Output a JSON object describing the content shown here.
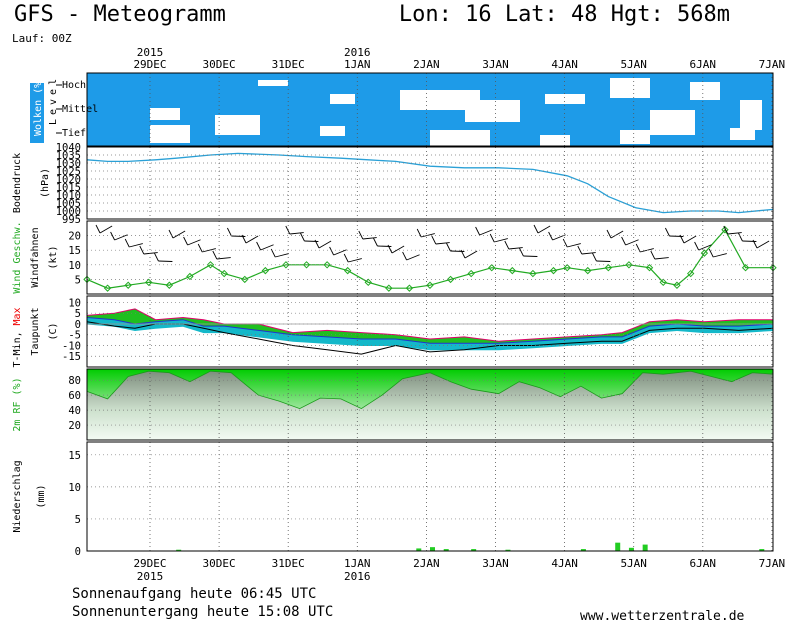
{
  "header": {
    "title": "GFS - Meteogramm",
    "location": "Lon: 16  Lat: 48  Hgt: 568m",
    "run": "Lauf: 00Z"
  },
  "footer": {
    "sunrise": "Sonnenaufgang heute 06:45 UTC",
    "sunset": "Sonnenuntergang heute 15:08 UTC",
    "site": "www.wetterzentrale.de"
  },
  "x_axis": {
    "dates": [
      "29DEC",
      "30DEC",
      "31DEC",
      "1JAN",
      "2JAN",
      "3JAN",
      "4JAN",
      "5JAN",
      "6JAN",
      "7JAN"
    ],
    "years": [
      {
        "label": "2015",
        "date": "29DEC"
      },
      {
        "label": "2016",
        "date": "1JAN"
      }
    ]
  },
  "colors": {
    "cloud": "#1e9be8",
    "pressure": "#2aa0d6",
    "wind": "#22aa22",
    "rf": "#1fcc1f",
    "precip": "#22cc22"
  },
  "chart_data": [
    {
      "type": "heatmap",
      "title": "Wolken (%)",
      "ylabel": "Level",
      "levels": [
        "Hoch",
        "Mittel",
        "Tief"
      ],
      "note": "cloud cover by level"
    },
    {
      "type": "line",
      "ylabel": "Bodendruck (hPa)",
      "yticks": [
        1040,
        1035,
        1030,
        1025,
        1020,
        1015,
        1010,
        1005,
        1000,
        995
      ],
      "ylim": [
        995,
        1040
      ],
      "x_days": [
        0,
        0.3,
        0.6,
        1.0,
        1.3,
        1.8,
        2.2,
        2.8,
        3.2,
        3.7,
        4.1,
        4.5,
        5.0,
        5.5,
        6.0,
        6.5,
        7.0,
        7.3,
        7.6,
        8.0,
        8.4,
        8.8,
        9.2,
        9.5,
        10.0
      ],
      "values": [
        1032,
        1031,
        1031,
        1032,
        1033,
        1035,
        1036,
        1035,
        1034,
        1033,
        1032,
        1031,
        1028,
        1027,
        1027,
        1026,
        1022,
        1017,
        1009,
        1002,
        999,
        1000,
        1000,
        999,
        1001
      ]
    },
    {
      "type": "line",
      "ylabel": "Wind Geschw. (kt)",
      "ylim": [
        0,
        25
      ],
      "yticks": [
        20,
        15,
        10,
        5
      ],
      "x_days": [
        0,
        0.3,
        0.6,
        0.9,
        1.2,
        1.5,
        1.8,
        2.0,
        2.3,
        2.6,
        2.9,
        3.2,
        3.5,
        3.8,
        4.1,
        4.4,
        4.7,
        5.0,
        5.3,
        5.6,
        5.9,
        6.2,
        6.5,
        6.8,
        7.0,
        7.3,
        7.6,
        7.9,
        8.2,
        8.4,
        8.6,
        8.8,
        9.0,
        9.3,
        9.6,
        10.0
      ],
      "values": [
        5,
        2,
        3,
        4,
        3,
        6,
        10,
        7,
        5,
        8,
        10,
        10,
        10,
        8,
        4,
        2,
        2,
        3,
        5,
        7,
        9,
        8,
        7,
        8,
        9,
        8,
        9,
        10,
        9,
        4,
        3,
        7,
        14,
        22,
        9,
        9
      ]
    },
    {
      "type": "area",
      "ylabel": "T-Min, Max (C) / Taupunkt",
      "ylim": [
        -20,
        13
      ],
      "yticks": [
        10,
        5,
        0,
        -5,
        -10,
        -15
      ],
      "x_days": [
        0,
        0.4,
        0.7,
        1.0,
        1.4,
        1.7,
        2.0,
        2.5,
        3.0,
        3.5,
        4.0,
        4.5,
        5.0,
        5.5,
        6.0,
        6.5,
        7.0,
        7.5,
        7.8,
        8.2,
        8.6,
        9.0,
        9.5,
        10.0
      ],
      "series": [
        {
          "name": "T-Max",
          "values": [
            4,
            5,
            7,
            2,
            3,
            2,
            0,
            0,
            -4,
            -3,
            -4,
            -5,
            -7,
            -6,
            -8,
            -7,
            -6,
            -5,
            -4,
            1,
            2,
            1,
            2,
            2
          ]
        },
        {
          "name": "T-Min",
          "values": [
            3,
            2,
            0,
            1,
            2,
            -1,
            -1,
            -3,
            -5,
            -6,
            -7,
            -7,
            -9,
            -9,
            -9,
            -8,
            -7,
            -6,
            -6,
            -1,
            0,
            -1,
            -1,
            0
          ]
        },
        {
          "name": "Taupunkt",
          "values": [
            1,
            -1,
            -2,
            0,
            0,
            -2,
            -4,
            -7,
            -10,
            -12,
            -14,
            -10,
            -13,
            -12,
            -10,
            -10,
            -9,
            -8,
            -8,
            -3,
            -2,
            -2,
            -3,
            -2
          ]
        }
      ]
    },
    {
      "type": "area",
      "ylabel": "2m RF (%)",
      "ylim": [
        0,
        95
      ],
      "yticks": [
        80,
        60,
        40,
        20
      ],
      "x_days": [
        0,
        0.3,
        0.6,
        0.9,
        1.2,
        1.5,
        1.8,
        2.1,
        2.5,
        2.8,
        3.1,
        3.4,
        3.7,
        4.0,
        4.3,
        4.6,
        5.0,
        5.3,
        5.6,
        6.0,
        6.3,
        6.6,
        6.9,
        7.2,
        7.5,
        7.8,
        8.1,
        8.4,
        8.8,
        9.1,
        9.4,
        9.7,
        10.0
      ],
      "values": [
        65,
        55,
        85,
        92,
        90,
        78,
        92,
        90,
        60,
        52,
        42,
        56,
        55,
        42,
        60,
        82,
        90,
        78,
        68,
        62,
        78,
        70,
        58,
        72,
        56,
        62,
        90,
        88,
        92,
        85,
        78,
        90,
        88
      ]
    },
    {
      "type": "bar",
      "ylabel": "Niederschlag (mm)",
      "ylim": [
        0,
        17
      ],
      "yticks": [
        15,
        10,
        5,
        0
      ],
      "x_days": [
        1.3,
        4.8,
        5.0,
        5.2,
        5.6,
        6.1,
        7.2,
        7.7,
        7.9,
        8.1,
        9.8
      ],
      "values": [
        0.2,
        0.4,
        0.6,
        0.3,
        0.3,
        0.2,
        0.3,
        1.3,
        0.5,
        1.0,
        0.3
      ]
    }
  ]
}
